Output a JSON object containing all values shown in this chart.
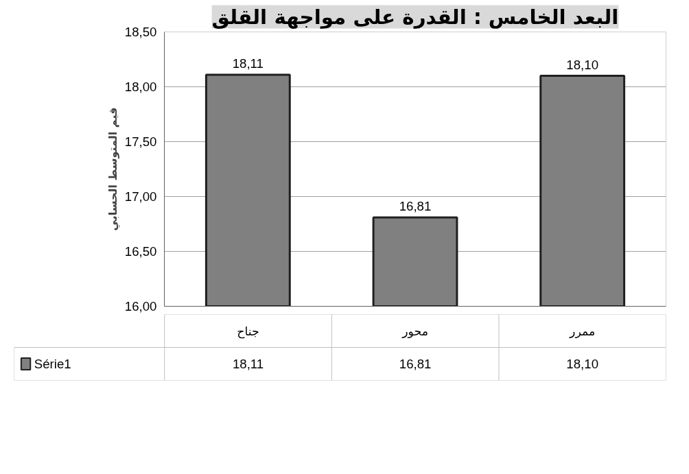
{
  "chart_data": {
    "type": "bar",
    "title": "البعد الخامس : القدرة على مواجهة القلق",
    "ylabel": "قيم المتوسط الحسابي",
    "categories": [
      "جناح",
      "محور",
      "ممرر"
    ],
    "series": [
      {
        "name": "Série1",
        "color": "#808080",
        "values": [
          18.11,
          16.81,
          18.1
        ],
        "value_labels": [
          "18,11",
          "16,81",
          "18,10"
        ]
      }
    ],
    "ylim": [
      16,
      18.5
    ],
    "yticks": [
      {
        "value": 16,
        "label": "16,00"
      },
      {
        "value": 16.5,
        "label": "16,50"
      },
      {
        "value": 17,
        "label": "17,00"
      },
      {
        "value": 17.5,
        "label": "17,50"
      },
      {
        "value": 18,
        "label": "18,00"
      },
      {
        "value": 18.5,
        "label": "18,50"
      }
    ],
    "grid": "y",
    "legend": "bottom"
  }
}
